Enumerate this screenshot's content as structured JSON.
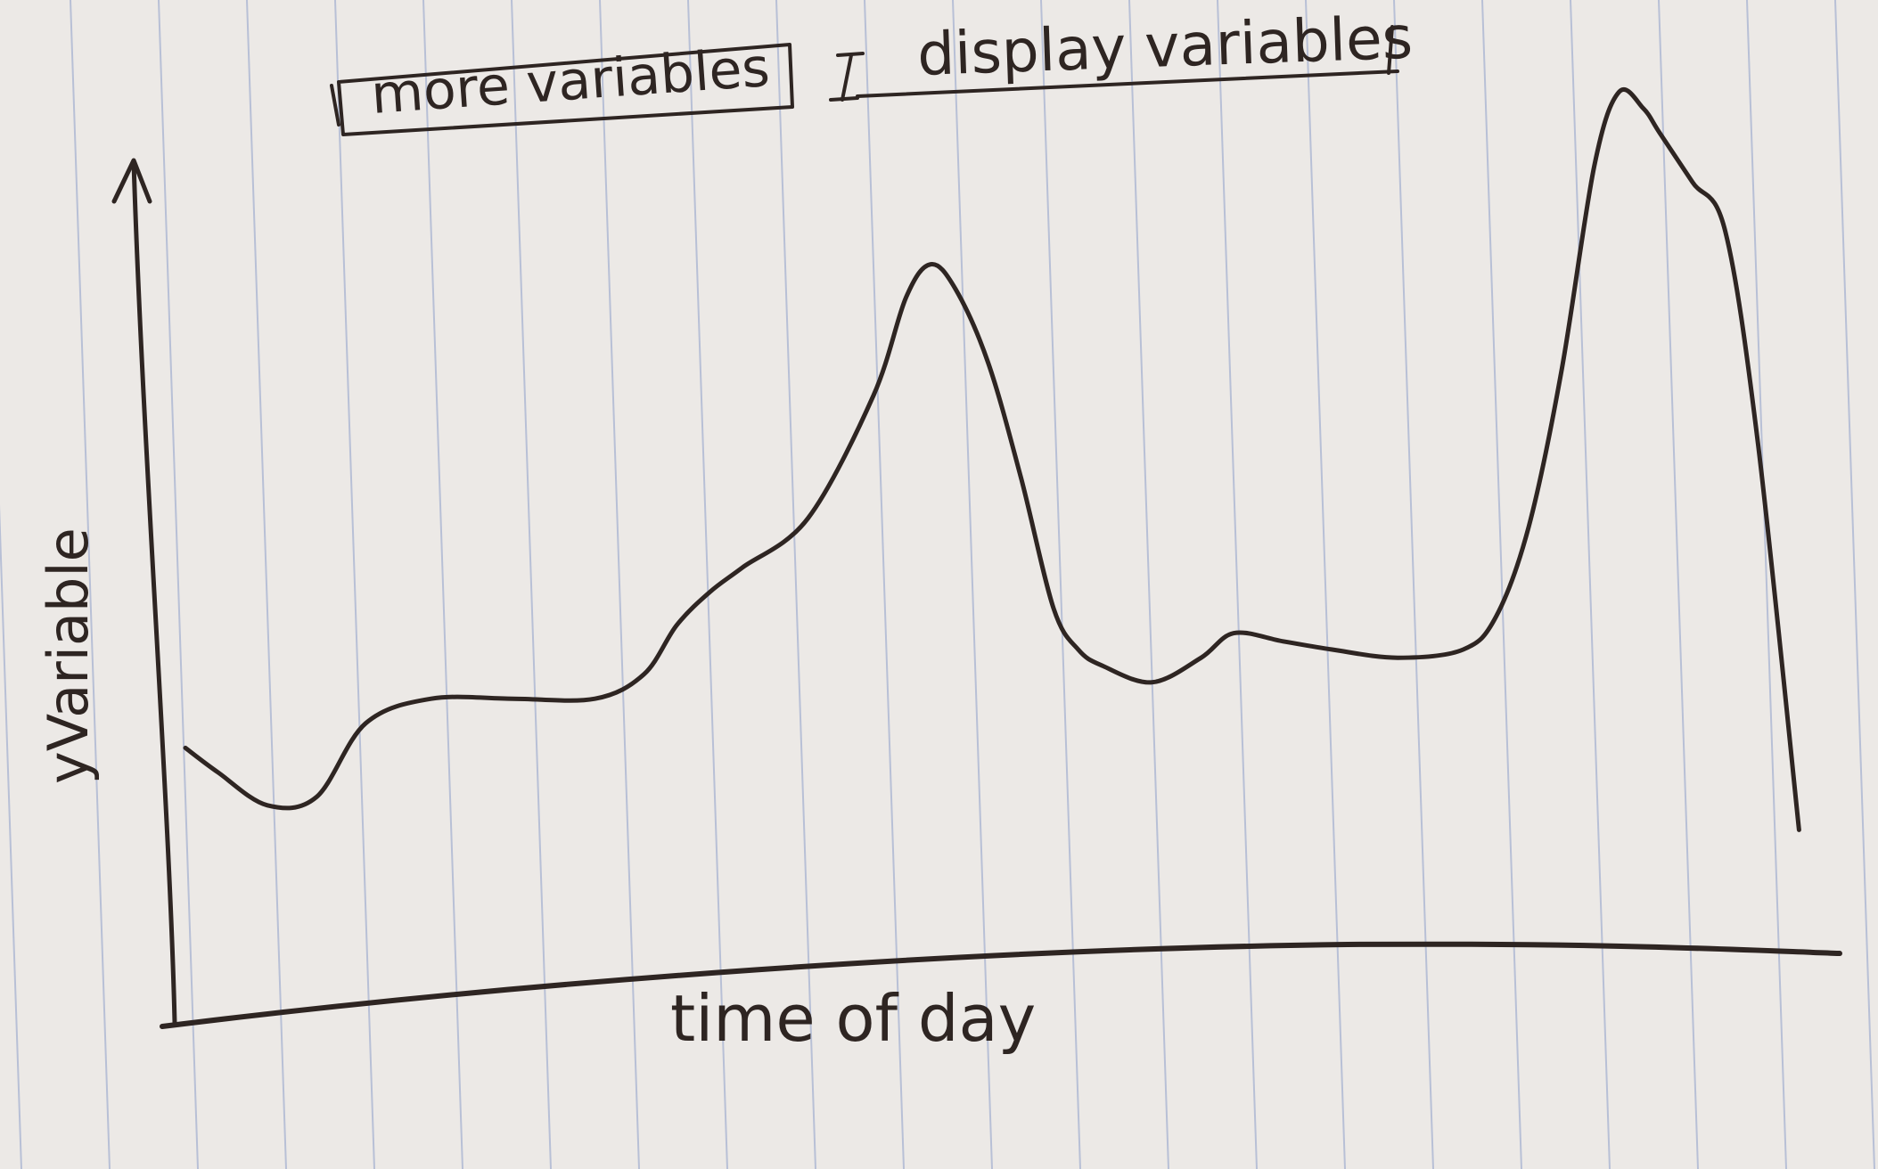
{
  "controls": {
    "more_variables_label": "more variables",
    "display_variables_label": "display variables"
  },
  "chart_data": {
    "type": "line",
    "title": "",
    "xlabel": "time of day",
    "ylabel": "yVariable",
    "xlim": [
      0,
      100
    ],
    "ylim": [
      0,
      100
    ],
    "grid": false,
    "legend": "none",
    "series": [
      {
        "x": [
          0,
          2,
          5,
          8,
          11,
          15,
          20,
          25,
          28,
          30,
          32,
          34,
          38,
          42,
          44,
          45.5,
          47,
          49,
          51,
          53,
          54.5,
          56,
          59,
          62,
          64,
          67,
          70,
          74,
          78,
          80,
          82,
          84,
          86,
          87.5,
          89,
          90,
          92,
          94,
          96,
          98.5
        ],
        "y": [
          18,
          15,
          11,
          12,
          21,
          24,
          24,
          24,
          27,
          33,
          37,
          40,
          46,
          61,
          73,
          77,
          74,
          65,
          51,
          35,
          30,
          28,
          26,
          29,
          32,
          31,
          30,
          29,
          30,
          34,
          45,
          64,
          89,
          98,
          96,
          93,
          87,
          81,
          55,
          8
        ]
      }
    ],
    "color": "#2e2522"
  }
}
